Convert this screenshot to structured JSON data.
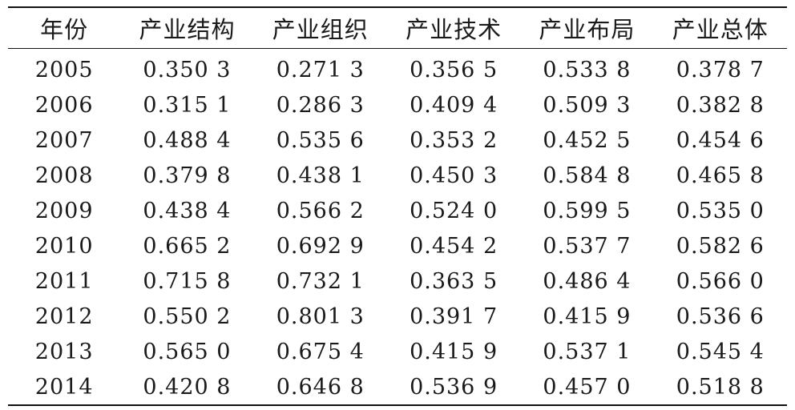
{
  "table": {
    "headers": [
      "年份",
      "产业结构",
      "产业组织",
      "产业技术",
      "产业布局",
      "产业总体"
    ],
    "rows": [
      [
        "2005",
        "0.350 3",
        "0.271 3",
        "0.356 5",
        "0.533 8",
        "0.378 7"
      ],
      [
        "2006",
        "0.315 1",
        "0.286 3",
        "0.409 4",
        "0.509 3",
        "0.382 8"
      ],
      [
        "2007",
        "0.488 4",
        "0.535 6",
        "0.353 2",
        "0.452 5",
        "0.454 6"
      ],
      [
        "2008",
        "0.379 8",
        "0.438 1",
        "0.450 3",
        "0.584 8",
        "0.465 8"
      ],
      [
        "2009",
        "0.438 4",
        "0.566 2",
        "0.524 0",
        "0.599 5",
        "0.535 0"
      ],
      [
        "2010",
        "0.665 2",
        "0.692 9",
        "0.454 2",
        "0.537 7",
        "0.582 6"
      ],
      [
        "2011",
        "0.715 8",
        "0.732 1",
        "0.363 5",
        "0.486 4",
        "0.566 0"
      ],
      [
        "2012",
        "0.550 2",
        "0.801 3",
        "0.391 7",
        "0.415 9",
        "0.536 6"
      ],
      [
        "2013",
        "0.565 0",
        "0.675 4",
        "0.415 9",
        "0.537 1",
        "0.545 4"
      ],
      [
        "2014",
        "0.420 8",
        "0.646 8",
        "0.536 9",
        "0.457 0",
        "0.518 8"
      ]
    ]
  }
}
